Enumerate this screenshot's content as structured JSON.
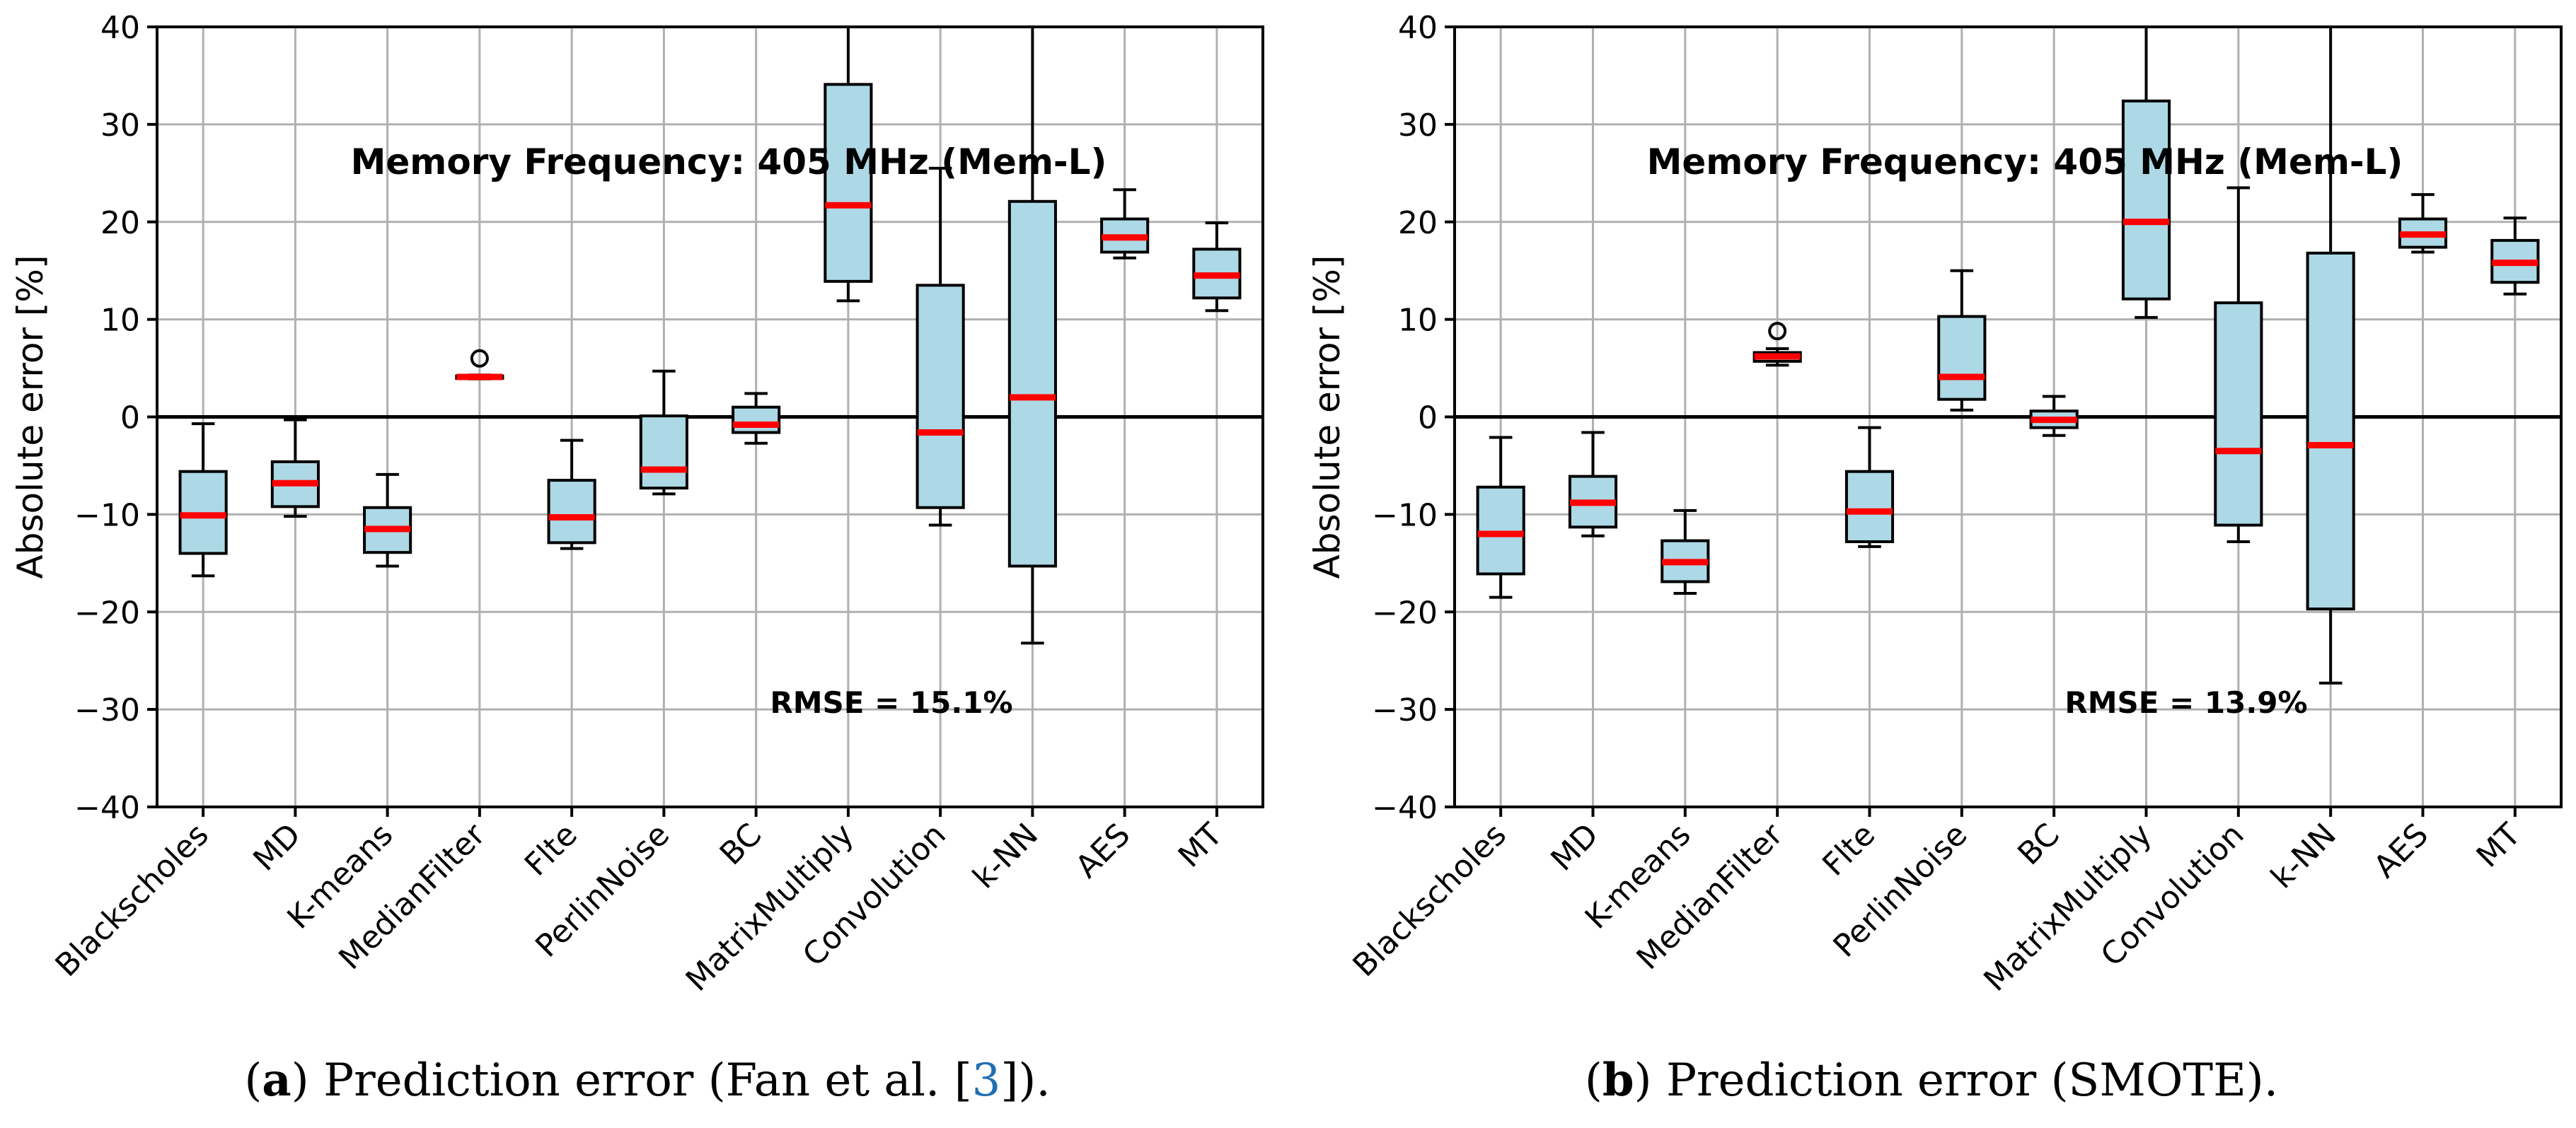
{
  "chart_data": [
    {
      "type": "box",
      "title": "Memory Frequency: 405 MHz (Mem-L)",
      "annotation": "RMSE = 15.1%",
      "ylabel": "Absolute error [%]",
      "xlabel": "",
      "ylim": [
        -40,
        40
      ],
      "yticks": [
        -40,
        -30,
        -20,
        -10,
        0,
        10,
        20,
        30,
        40
      ],
      "ytick_labels": [
        "−40",
        "−30",
        "−20",
        "−10",
        "0",
        "10",
        "20",
        "30",
        "40"
      ],
      "grid": true,
      "zero_line": true,
      "categories": [
        "Blackscholes",
        "MD",
        "K-means",
        "MedianFilter",
        "Flte",
        "PerlinNoise",
        "BC",
        "MatrixMultiply",
        "Convolution",
        "k-NN",
        "AES",
        "MT"
      ],
      "boxes": [
        {
          "whislo": -16.3,
          "q1": -14.0,
          "med": -10.1,
          "q3": -5.6,
          "whishi": -0.7,
          "fliers": []
        },
        {
          "whislo": -10.2,
          "q1": -9.2,
          "med": -6.8,
          "q3": -4.6,
          "whishi": -0.3,
          "fliers": []
        },
        {
          "whislo": -15.3,
          "q1": -13.9,
          "med": -11.5,
          "q3": -9.3,
          "whishi": -5.9,
          "fliers": []
        },
        {
          "whislo": 3.9,
          "q1": 3.95,
          "med": 4.1,
          "q3": 4.2,
          "whishi": 4.3,
          "fliers": [
            6.0
          ]
        },
        {
          "whislo": -13.5,
          "q1": -12.9,
          "med": -10.3,
          "q3": -6.5,
          "whishi": -2.4,
          "fliers": []
        },
        {
          "whislo": -7.9,
          "q1": -7.3,
          "med": -5.4,
          "q3": 0.1,
          "whishi": 4.7,
          "fliers": []
        },
        {
          "whislo": -2.7,
          "q1": -1.6,
          "med": -0.8,
          "q3": 1.0,
          "whishi": 2.4,
          "fliers": []
        },
        {
          "whislo": 11.9,
          "q1": 13.9,
          "med": 21.7,
          "q3": 34.1,
          "whishi": 40.0,
          "fliers": []
        },
        {
          "whislo": -11.1,
          "q1": -9.3,
          "med": -1.6,
          "q3": 13.5,
          "whishi": 25.5,
          "fliers": []
        },
        {
          "whislo": -23.2,
          "q1": -15.3,
          "med": 2.0,
          "q3": 22.1,
          "whishi": 40.0,
          "fliers": []
        },
        {
          "whislo": 16.3,
          "q1": 16.9,
          "med": 18.4,
          "q3": 20.3,
          "whishi": 23.3,
          "fliers": []
        },
        {
          "whislo": 10.9,
          "q1": 12.2,
          "med": 14.5,
          "q3": 17.2,
          "whishi": 19.9,
          "fliers": []
        }
      ],
      "colors": {
        "box_fill": "#add8e6",
        "median": "#ff0000",
        "edge": "#000000",
        "grid": "#b0b0b0"
      }
    },
    {
      "type": "box",
      "title": "Memory Frequency: 405 MHz (Mem-L)",
      "annotation": "RMSE = 13.9%",
      "ylabel": "Absolute error [%]",
      "xlabel": "",
      "ylim": [
        -40,
        40
      ],
      "yticks": [
        -40,
        -30,
        -20,
        -10,
        0,
        10,
        20,
        30,
        40
      ],
      "ytick_labels": [
        "−40",
        "−30",
        "−20",
        "−10",
        "0",
        "10",
        "20",
        "30",
        "40"
      ],
      "grid": true,
      "zero_line": true,
      "categories": [
        "Blackscholes",
        "MD",
        "K-means",
        "MedianFilter",
        "Flte",
        "PerlinNoise",
        "BC",
        "MatrixMultiply",
        "Convolution",
        "k-NN",
        "AES",
        "MT"
      ],
      "boxes": [
        {
          "whislo": -18.5,
          "q1": -16.1,
          "med": -12.0,
          "q3": -7.2,
          "whishi": -2.1,
          "fliers": []
        },
        {
          "whislo": -12.2,
          "q1": -11.3,
          "med": -8.8,
          "q3": -6.1,
          "whishi": -1.6,
          "fliers": []
        },
        {
          "whislo": -18.1,
          "q1": -16.9,
          "med": -14.9,
          "q3": -12.7,
          "whishi": -9.6,
          "fliers": []
        },
        {
          "whislo": 5.3,
          "q1": 5.7,
          "med": 6.2,
          "q3": 6.6,
          "whishi": 7.0,
          "fliers": [
            8.8
          ]
        },
        {
          "whislo": -13.3,
          "q1": -12.8,
          "med": -9.7,
          "q3": -5.6,
          "whishi": -1.1,
          "fliers": []
        },
        {
          "whislo": 0.7,
          "q1": 1.8,
          "med": 4.1,
          "q3": 10.3,
          "whishi": 15.0,
          "fliers": []
        },
        {
          "whislo": -1.9,
          "q1": -1.1,
          "med": -0.3,
          "q3": 0.6,
          "whishi": 2.1,
          "fliers": []
        },
        {
          "whislo": 10.2,
          "q1": 12.1,
          "med": 20.0,
          "q3": 32.4,
          "whishi": 40.0,
          "fliers": []
        },
        {
          "whislo": -12.8,
          "q1": -11.1,
          "med": -3.5,
          "q3": 11.7,
          "whishi": 23.5,
          "fliers": []
        },
        {
          "whislo": -27.3,
          "q1": -19.7,
          "med": -2.9,
          "q3": 16.8,
          "whishi": 40.0,
          "fliers": []
        },
        {
          "whislo": 16.9,
          "q1": 17.4,
          "med": 18.7,
          "q3": 20.3,
          "whishi": 22.8,
          "fliers": []
        },
        {
          "whislo": 12.6,
          "q1": 13.8,
          "med": 15.8,
          "q3": 18.1,
          "whishi": 20.4,
          "fliers": []
        }
      ],
      "colors": {
        "box_fill": "#add8e6",
        "median": "#ff0000",
        "edge": "#000000",
        "grid": "#b0b0b0"
      }
    }
  ],
  "captions": [
    {
      "label": "a",
      "text": ") Prediction error (Fan et al. [",
      "ref": "3",
      "end": "])."
    },
    {
      "label": "b",
      "text": ") Prediction error (SMOTE).",
      "ref": "",
      "end": ""
    }
  ]
}
